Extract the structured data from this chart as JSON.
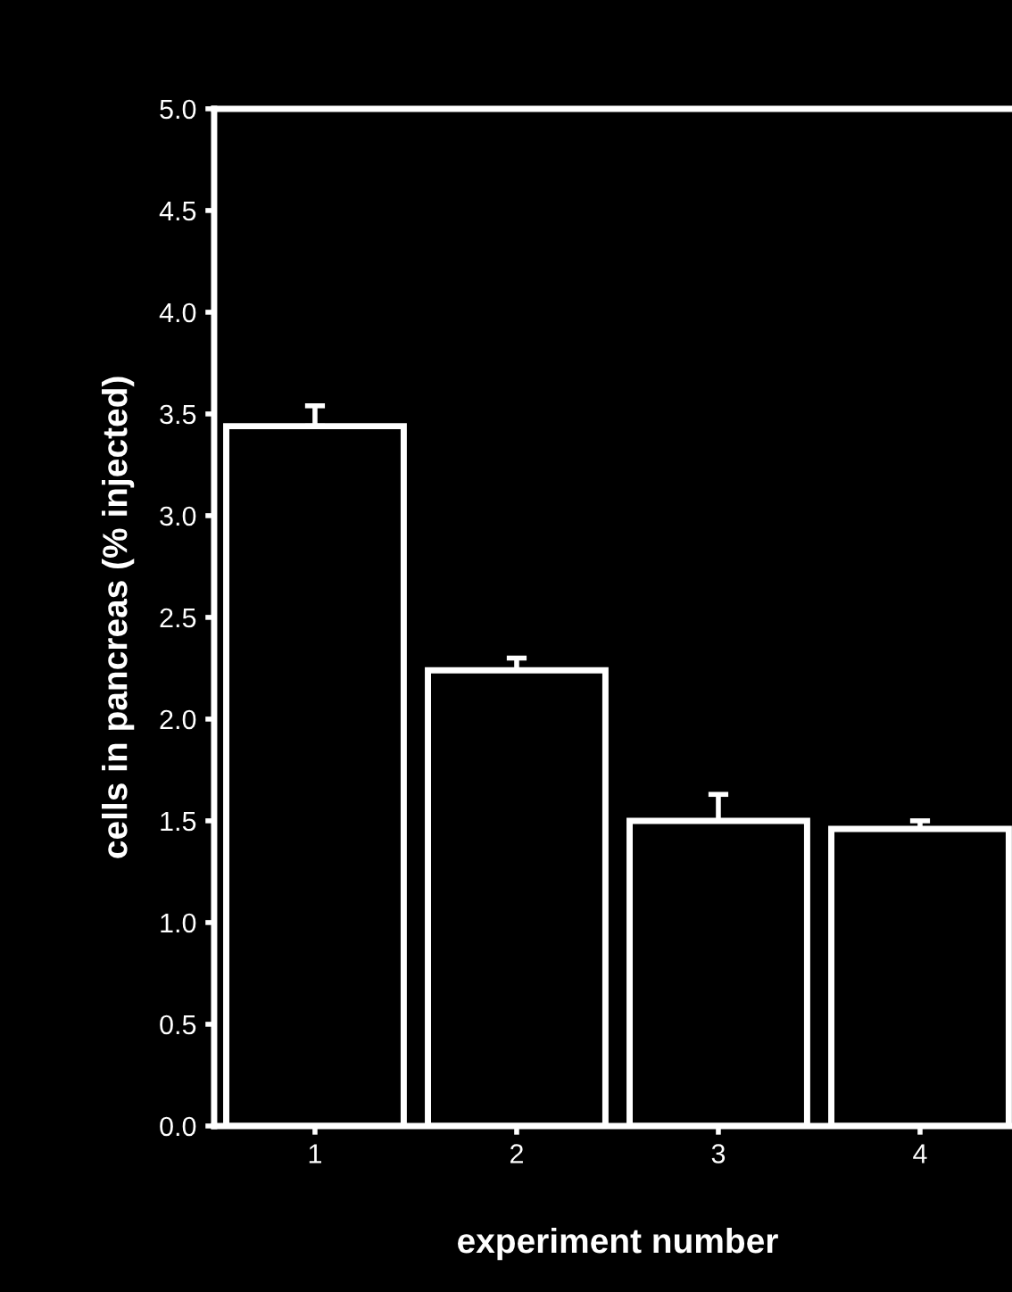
{
  "chart_data": {
    "type": "bar",
    "xlabel": "experiment number",
    "ylabel": "cells in pancreas (% injected)",
    "categories": [
      "1",
      "2",
      "3",
      "4"
    ],
    "values": [
      3.44,
      2.24,
      1.5,
      1.46
    ],
    "errors": [
      [
        3.44,
        3.54
      ],
      [
        2.24,
        2.3
      ],
      [
        1.5,
        1.63
      ],
      [
        1.46,
        1.5
      ]
    ],
    "color": "#000000",
    "ylim": [
      0,
      5
    ],
    "yticks": [
      {
        "value": 0,
        "label": "0.0"
      },
      0.5,
      {
        "value": 1,
        "label": "1.0"
      },
      1.5,
      {
        "value": 2,
        "label": "2.0"
      },
      2.5,
      {
        "value": 3,
        "label": "3.0"
      },
      3.5,
      {
        "value": 4,
        "label": "4.0"
      },
      4.5,
      {
        "value": 5,
        "label": "5.0"
      }
    ],
    "grid": false
  }
}
